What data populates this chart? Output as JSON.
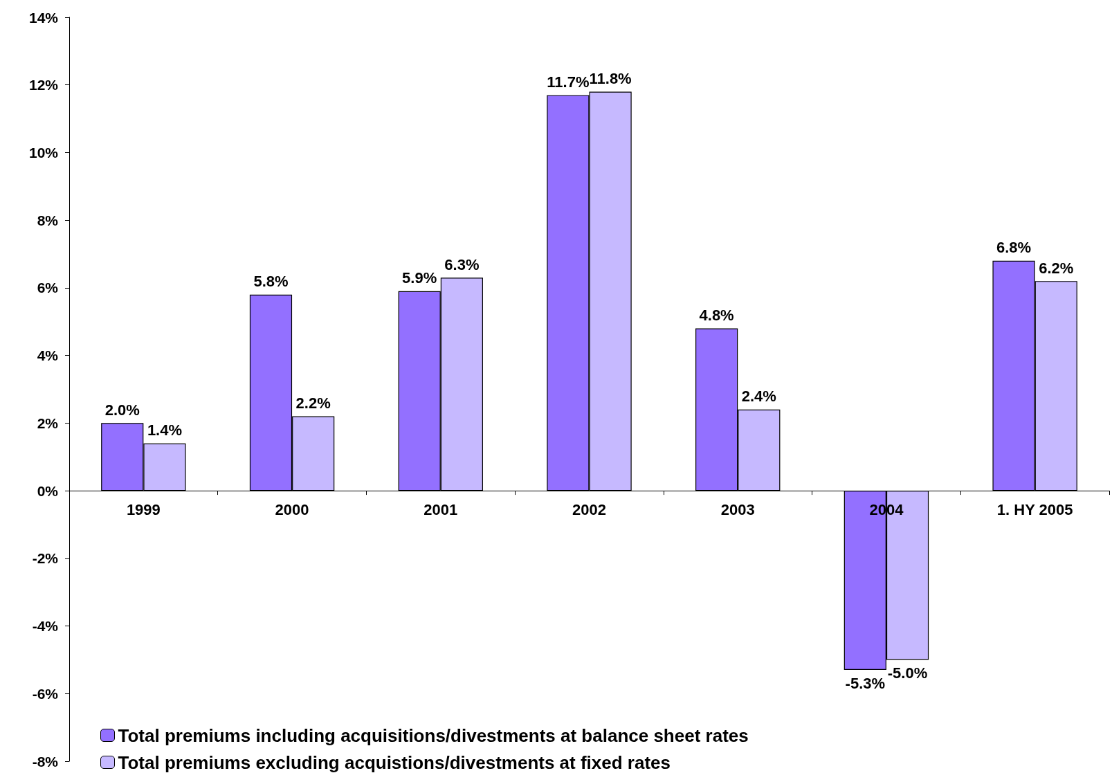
{
  "chart_data": {
    "type": "bar",
    "categories": [
      "1999",
      "2000",
      "2001",
      "2002",
      "2003",
      "2004",
      "1. HY 2005"
    ],
    "series": [
      {
        "name": "Total premiums including acquisitions/divestments at balance sheet rates",
        "color": "#9370ff",
        "values": [
          2.0,
          5.8,
          5.9,
          11.7,
          4.8,
          -5.3,
          6.8
        ],
        "value_labels": [
          "2.0%",
          "5.8%",
          "5.9%",
          "11.7%",
          "4.8%",
          "-5.3%",
          "6.8%"
        ]
      },
      {
        "name": "Total premiums excluding acquistions/divestments at fixed rates",
        "color": "#c6b9ff",
        "values": [
          1.4,
          2.2,
          6.3,
          11.8,
          2.4,
          -5.0,
          6.2
        ],
        "value_labels": [
          "1.4%",
          "2.2%",
          "6.3%",
          "11.8%",
          "2.4%",
          "-5.0%",
          "6.2%"
        ]
      }
    ],
    "ylim": [
      -8,
      14
    ],
    "yticks": [
      {
        "value": -8,
        "label": "-8%"
      },
      {
        "value": -6,
        "label": "-6%"
      },
      {
        "value": -4,
        "label": "-4%"
      },
      {
        "value": -2,
        "label": "-2%"
      },
      {
        "value": 0,
        "label": "0%"
      },
      {
        "value": 2,
        "label": "2%"
      },
      {
        "value": 4,
        "label": "4%"
      },
      {
        "value": 6,
        "label": "6%"
      },
      {
        "value": 8,
        "label": "8%"
      },
      {
        "value": 10,
        "label": "10%"
      },
      {
        "value": 12,
        "label": "12%"
      },
      {
        "value": 14,
        "label": "14%"
      }
    ],
    "grid": false,
    "legend": "bottom left"
  }
}
